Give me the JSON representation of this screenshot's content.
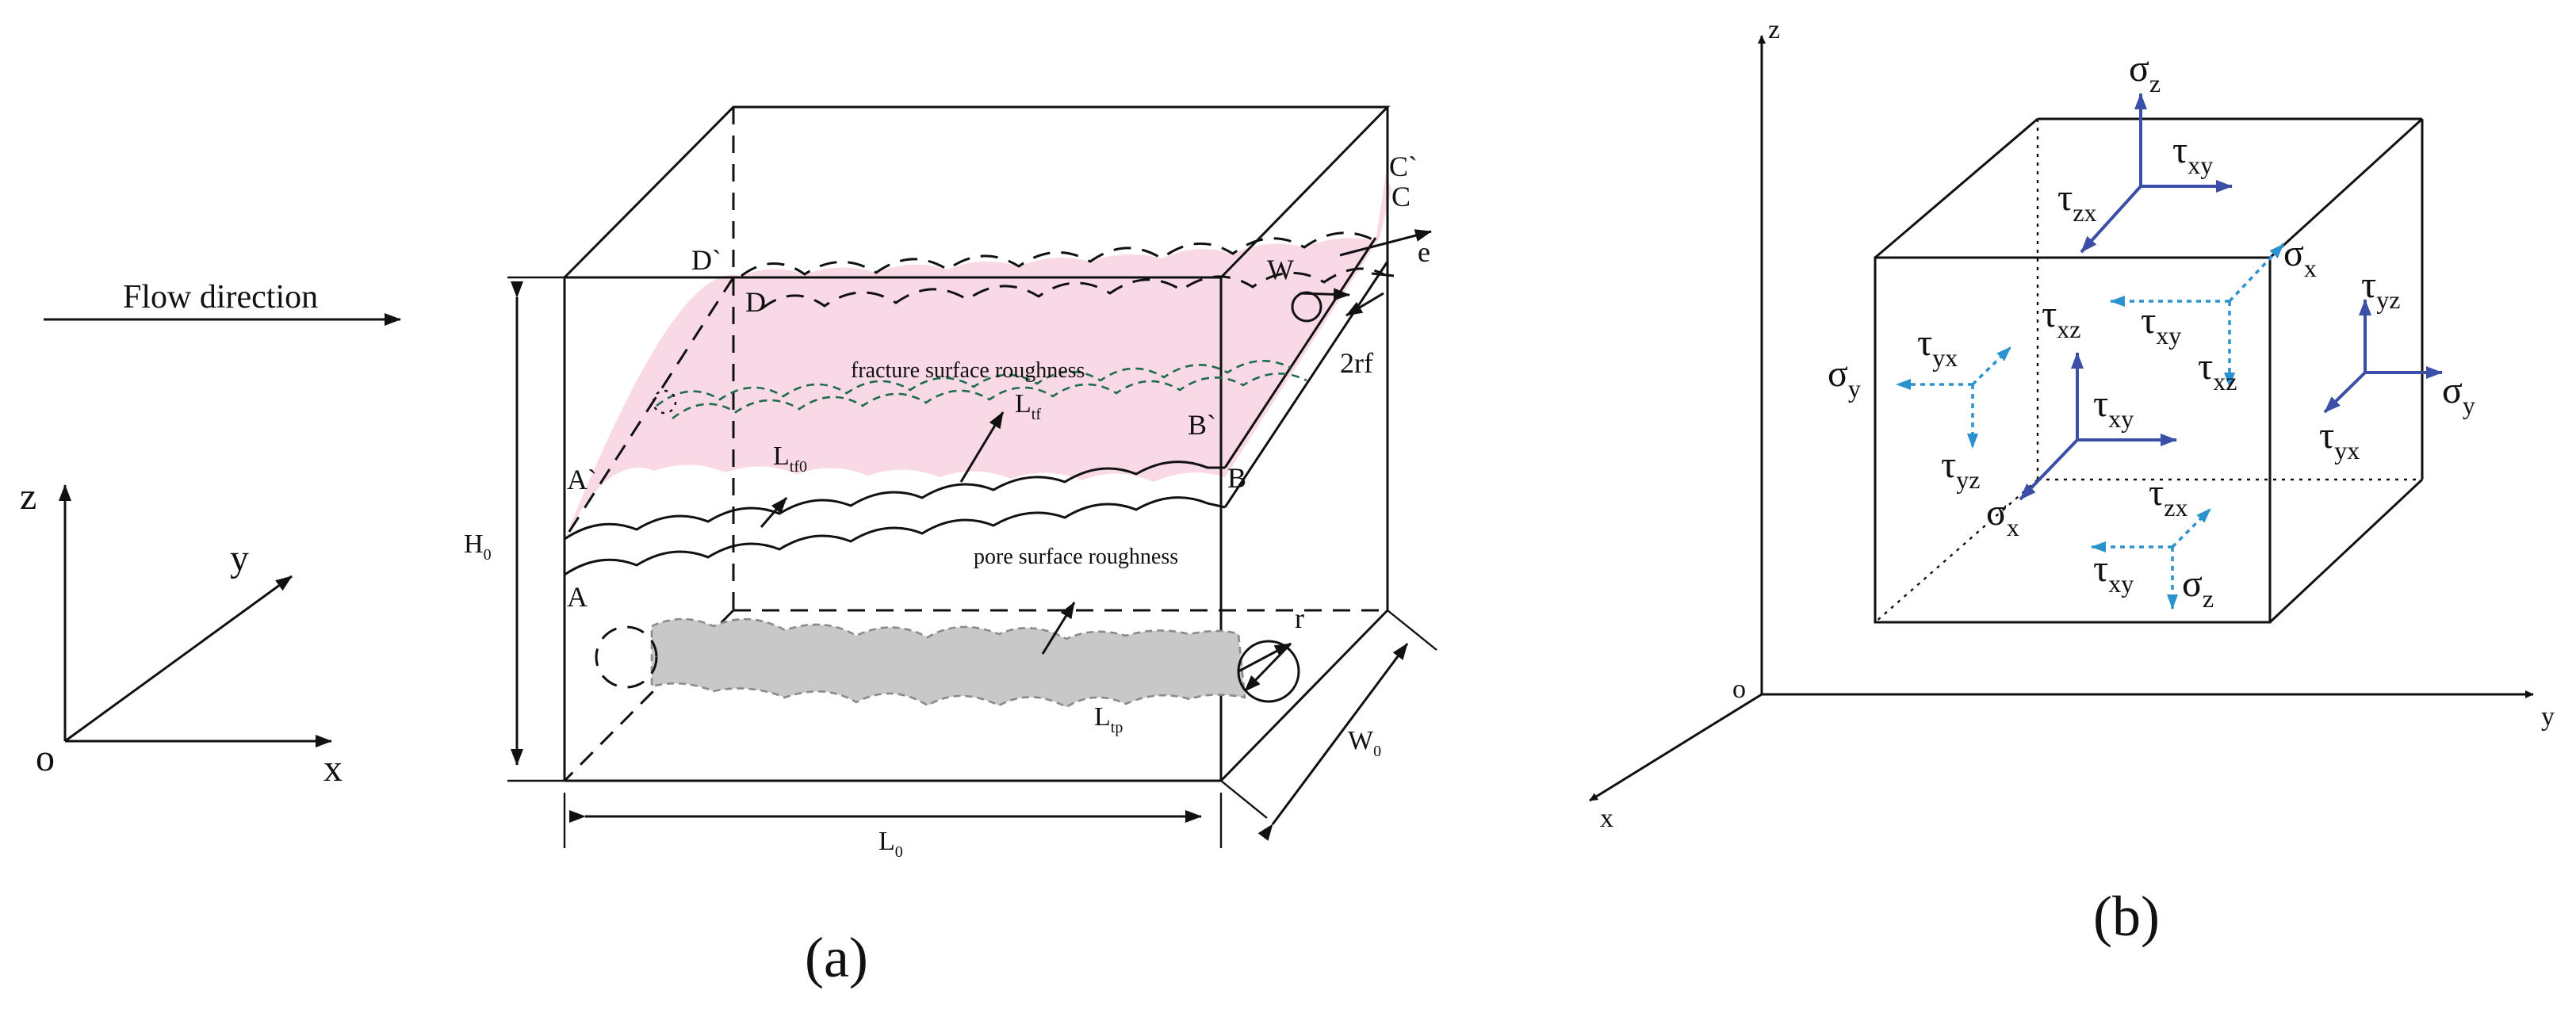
{
  "panel_a": {
    "caption": "(a)",
    "flow_label": "Flow direction",
    "axes": {
      "z": "z",
      "y": "y",
      "x": "x",
      "origin": "o"
    },
    "labels": {
      "D_prime": "D`",
      "D": "D",
      "C_prime": "C`",
      "C": "C",
      "W": "W",
      "e": "e",
      "two_rf": "2rf",
      "A_prime": "A`",
      "A": "A",
      "B_prime": "B`",
      "B": "B",
      "r": "r"
    },
    "subscripted": {
      "H0": {
        "base": "H",
        "sub": "0"
      },
      "L0": {
        "base": "L",
        "sub": "0"
      },
      "W0": {
        "base": "W",
        "sub": "0"
      },
      "Ltf": {
        "base": "L",
        "sub": "tf"
      },
      "Ltf0": {
        "base": "L",
        "sub": "tf0"
      },
      "Ltp": {
        "base": "L",
        "sub": "tp"
      }
    },
    "fracture_label": "fracture surface roughness",
    "pore_label": "pore surface roughness",
    "colors": {
      "fracture_fill": "#f9d9e6",
      "pore_fill": "#c8c8c8"
    }
  },
  "panel_b": {
    "caption": "(b)",
    "axes": {
      "z": "z",
      "y": "y",
      "x": "x",
      "origin": "o"
    },
    "stresses": {
      "sz_top": {
        "base": "σ",
        "sub": "z"
      },
      "txy_top": {
        "base": "τ",
        "sub": "xy"
      },
      "tzx_top": {
        "base": "τ",
        "sub": "zx"
      },
      "sx_right": {
        "base": "σ",
        "sub": "x"
      },
      "tyz_right": {
        "base": "τ",
        "sub": "yz"
      },
      "sy_right": {
        "base": "σ",
        "sub": "y"
      },
      "tyx_right": {
        "base": "τ",
        "sub": "yx"
      },
      "tyx_left": {
        "base": "τ",
        "sub": "yx"
      },
      "sy_left": {
        "base": "σ",
        "sub": "y"
      },
      "tyz_left": {
        "base": "τ",
        "sub": "yz"
      },
      "txz_front": {
        "base": "τ",
        "sub": "xz"
      },
      "txy_front": {
        "base": "τ",
        "sub": "xy"
      },
      "sx_front": {
        "base": "σ",
        "sub": "x"
      },
      "txy_back": {
        "base": "τ",
        "sub": "xy"
      },
      "txz_back": {
        "base": "τ",
        "sub": "xz"
      },
      "tzx_bottom": {
        "base": "τ",
        "sub": "zx"
      },
      "txy_bottom": {
        "base": "τ",
        "sub": "xy"
      },
      "sz_bottom": {
        "base": "σ",
        "sub": "z"
      }
    },
    "colors": {
      "solid_arrow": "#3c4fa8",
      "dotted_arrow": "#2a93cf"
    }
  }
}
